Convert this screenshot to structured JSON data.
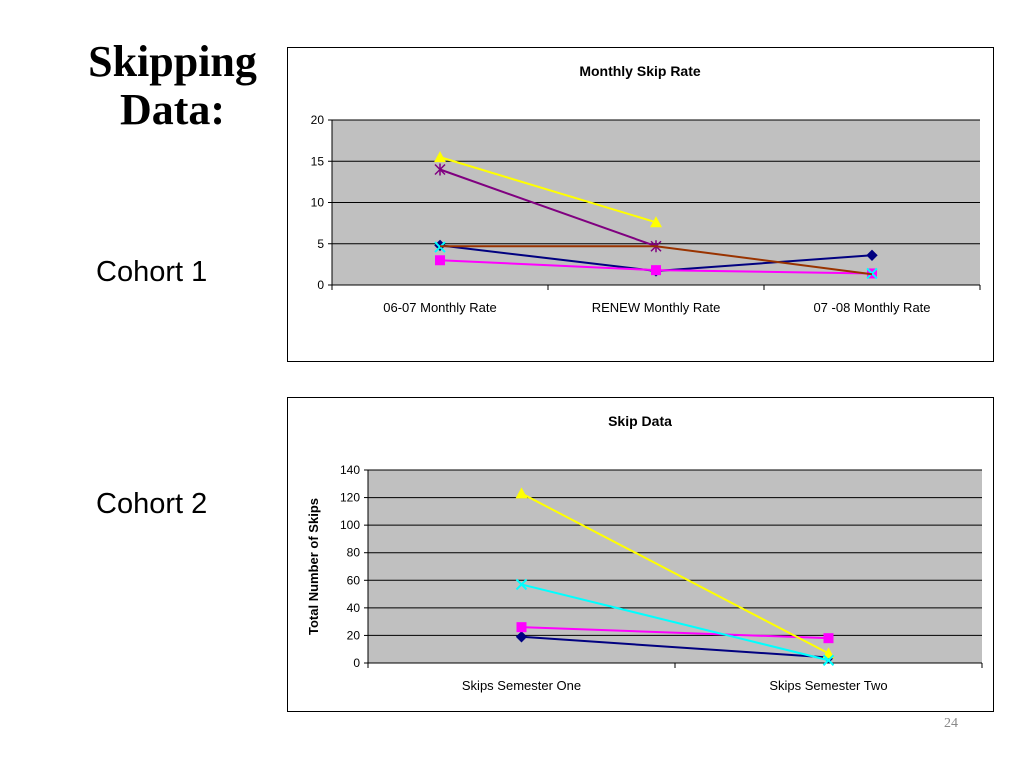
{
  "slide": {
    "title_line1": "Skipping",
    "title_line2": "Data:",
    "cohort1_label": "Cohort 1",
    "cohort2_label": "Cohort 2",
    "page_number": "24"
  },
  "chart_data": [
    {
      "type": "line",
      "title": "Monthly Skip Rate",
      "xlabel": "",
      "ylabel": "",
      "categories": [
        "06-07 Monthly Rate",
        "RENEW Monthly Rate",
        "07 -08 Monthly Rate"
      ],
      "ylim": [
        0,
        20
      ],
      "yticks": [
        0,
        5,
        10,
        15,
        20
      ],
      "grid": true,
      "plot_background": "#c0c0c0",
      "legend": "none",
      "series": [
        {
          "values": [
            4.8,
            1.7,
            3.6
          ],
          "color": "#000080",
          "marker": "diamond"
        },
        {
          "values": [
            3.0,
            1.8,
            1.4
          ],
          "color": "#ff00ff",
          "marker": "square"
        },
        {
          "values": [
            15.5,
            7.6,
            null
          ],
          "color": "#ffff00",
          "marker": "triangle"
        },
        {
          "values": [
            4.6,
            null,
            1.4
          ],
          "color": "#00ffff",
          "marker": "x"
        },
        {
          "values": [
            14.0,
            4.7,
            null
          ],
          "color": "#800080",
          "marker": "star"
        },
        {
          "values": [
            4.7,
            4.7,
            1.3
          ],
          "color": "#993300",
          "marker": "none"
        }
      ]
    },
    {
      "type": "line",
      "title": "Skip Data",
      "xlabel": "",
      "ylabel": "Total Number of Skips",
      "categories": [
        "Skips Semester One",
        "Skips Semester Two"
      ],
      "ylim": [
        0,
        140
      ],
      "yticks": [
        0,
        20,
        40,
        60,
        80,
        100,
        120,
        140
      ],
      "grid": true,
      "plot_background": "#c0c0c0",
      "legend": "none",
      "series": [
        {
          "values": [
            19,
            4
          ],
          "color": "#000080",
          "marker": "diamond"
        },
        {
          "values": [
            26,
            18
          ],
          "color": "#ff00ff",
          "marker": "square"
        },
        {
          "values": [
            123,
            7
          ],
          "color": "#ffff00",
          "marker": "triangle"
        },
        {
          "values": [
            57,
            2
          ],
          "color": "#00ffff",
          "marker": "x"
        }
      ]
    }
  ]
}
